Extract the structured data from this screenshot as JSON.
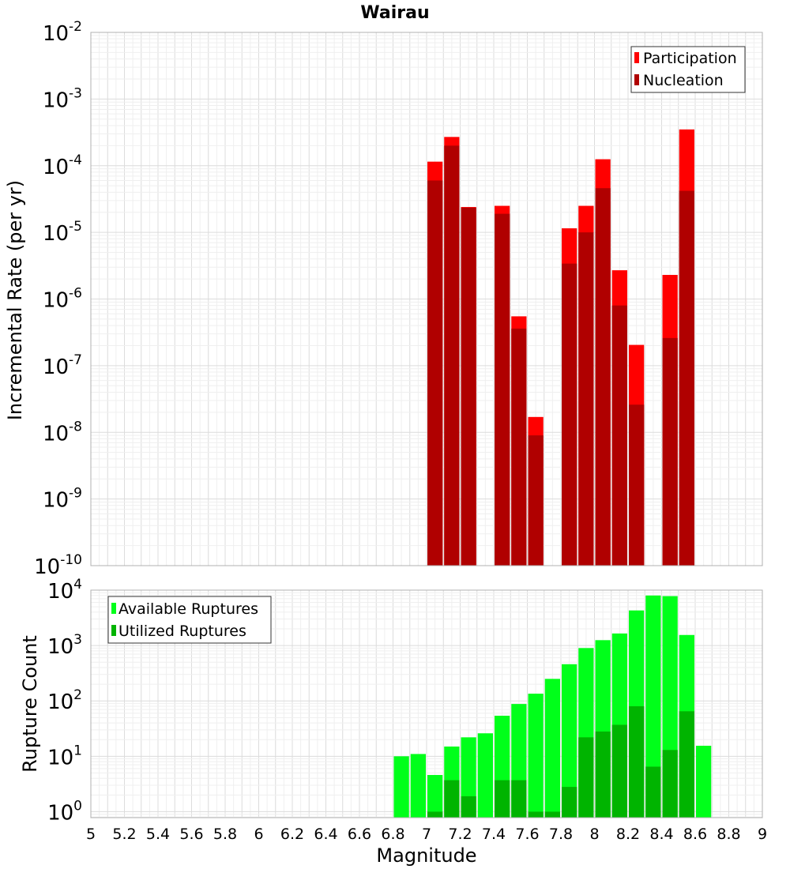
{
  "chart_data": [
    {
      "type": "bar",
      "title": "Wairau",
      "xlabel": "",
      "ylabel": "Incremental Rate (per yr)",
      "yscale": "log",
      "xlim": [
        5,
        9
      ],
      "ylim": [
        1e-10,
        0.01
      ],
      "yticks": [
        {
          "base": "10",
          "exp": "-2"
        },
        {
          "base": "10",
          "exp": "-3"
        },
        {
          "base": "10",
          "exp": "-4"
        },
        {
          "base": "10",
          "exp": "-5"
        },
        {
          "base": "10",
          "exp": "-6"
        },
        {
          "base": "10",
          "exp": "-7"
        },
        {
          "base": "10",
          "exp": "-8"
        },
        {
          "base": "10",
          "exp": "-9"
        },
        {
          "base": "10",
          "exp": "-10"
        }
      ],
      "legend_position": "top-right",
      "grid": true,
      "series": [
        {
          "name": "Participation",
          "color": "#ff0000",
          "points": [
            {
              "x": 7.05,
              "y": 0.000115
            },
            {
              "x": 7.15,
              "y": 0.00027
            },
            {
              "x": 7.25,
              "y": 2.4e-05
            },
            {
              "x": 7.45,
              "y": 2.5e-05
            },
            {
              "x": 7.55,
              "y": 5.5e-07
            },
            {
              "x": 7.65,
              "y": 1.7e-08
            },
            {
              "x": 7.85,
              "y": 1.15e-05
            },
            {
              "x": 7.95,
              "y": 2.5e-05
            },
            {
              "x": 8.05,
              "y": 0.000125
            },
            {
              "x": 8.15,
              "y": 2.7e-06
            },
            {
              "x": 8.25,
              "y": 2.05e-07
            },
            {
              "x": 8.45,
              "y": 2.3e-06
            },
            {
              "x": 8.55,
              "y": 0.00035
            }
          ]
        },
        {
          "name": "Nucleation",
          "color": "#b00000",
          "points": [
            {
              "x": 7.05,
              "y": 6e-05
            },
            {
              "x": 7.15,
              "y": 0.0002
            },
            {
              "x": 7.25,
              "y": 2.35e-05
            },
            {
              "x": 7.45,
              "y": 1.9e-05
            },
            {
              "x": 7.55,
              "y": 3.6e-07
            },
            {
              "x": 7.65,
              "y": 9e-09
            },
            {
              "x": 7.85,
              "y": 3.4e-06
            },
            {
              "x": 7.95,
              "y": 1e-05
            },
            {
              "x": 8.05,
              "y": 4.6e-05
            },
            {
              "x": 8.15,
              "y": 8e-07
            },
            {
              "x": 8.25,
              "y": 2.6e-08
            },
            {
              "x": 8.45,
              "y": 2.6e-07
            },
            {
              "x": 8.55,
              "y": 4.2e-05
            }
          ]
        }
      ]
    },
    {
      "type": "bar",
      "title": "",
      "xlabel": "Magnitude",
      "ylabel": "Rupture Count",
      "yscale": "log",
      "xlim": [
        5,
        9
      ],
      "ylim": [
        0.78,
        10000
      ],
      "xticks": [
        "5",
        "5.2",
        "5.4",
        "5.6",
        "5.8",
        "6",
        "6.2",
        "6.4",
        "6.6",
        "6.8",
        "7",
        "7.2",
        "7.4",
        "7.6",
        "7.8",
        "8",
        "8.2",
        "8.4",
        "8.6",
        "8.8",
        "9"
      ],
      "yticks": [
        {
          "base": "10",
          "exp": "4"
        },
        {
          "base": "10",
          "exp": "3"
        },
        {
          "base": "10",
          "exp": "2"
        },
        {
          "base": "10",
          "exp": "1"
        },
        {
          "base": "10",
          "exp": "0"
        }
      ],
      "legend_position": "top-left",
      "grid": true,
      "series": [
        {
          "name": "Available Ruptures",
          "color": "#00ff1a",
          "points": [
            {
              "x": 6.85,
              "y": 10
            },
            {
              "x": 6.95,
              "y": 11
            },
            {
              "x": 7.05,
              "y": 4.6
            },
            {
              "x": 7.15,
              "y": 15
            },
            {
              "x": 7.25,
              "y": 22
            },
            {
              "x": 7.35,
              "y": 26
            },
            {
              "x": 7.45,
              "y": 54
            },
            {
              "x": 7.55,
              "y": 88
            },
            {
              "x": 7.65,
              "y": 135
            },
            {
              "x": 7.75,
              "y": 250
            },
            {
              "x": 7.85,
              "y": 460
            },
            {
              "x": 7.95,
              "y": 900
            },
            {
              "x": 8.05,
              "y": 1250
            },
            {
              "x": 8.15,
              "y": 1650
            },
            {
              "x": 8.25,
              "y": 4300
            },
            {
              "x": 8.35,
              "y": 8000
            },
            {
              "x": 8.45,
              "y": 7800
            },
            {
              "x": 8.55,
              "y": 1550
            },
            {
              "x": 8.65,
              "y": 15.5
            }
          ]
        },
        {
          "name": "Utilized Ruptures",
          "color": "#00b400",
          "points": [
            {
              "x": 7.05,
              "y": 1
            },
            {
              "x": 7.15,
              "y": 3.7
            },
            {
              "x": 7.25,
              "y": 1.9
            },
            {
              "x": 7.45,
              "y": 3.7
            },
            {
              "x": 7.55,
              "y": 3.7
            },
            {
              "x": 7.65,
              "y": 1
            },
            {
              "x": 7.75,
              "y": 1
            },
            {
              "x": 7.85,
              "y": 2.8
            },
            {
              "x": 7.95,
              "y": 22
            },
            {
              "x": 8.05,
              "y": 28
            },
            {
              "x": 8.15,
              "y": 37
            },
            {
              "x": 8.25,
              "y": 80
            },
            {
              "x": 8.35,
              "y": 6.5
            },
            {
              "x": 8.45,
              "y": 13
            },
            {
              "x": 8.55,
              "y": 65
            }
          ]
        }
      ]
    }
  ]
}
